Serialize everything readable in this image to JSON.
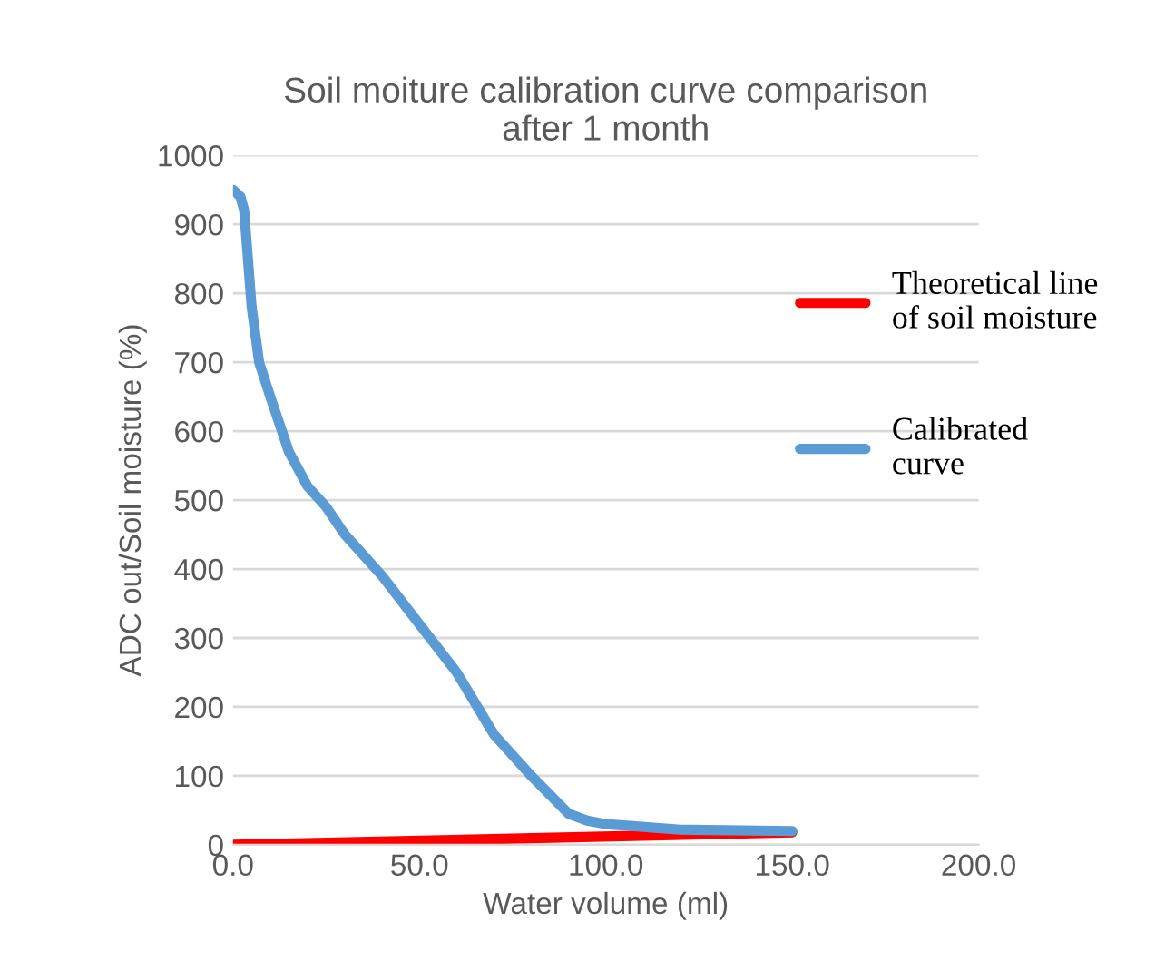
{
  "chart_data": {
    "type": "line",
    "title": "Soil moiture calibration curve comparison\nafter 1 month",
    "xlabel": "Water volume (ml)",
    "ylabel": "ADC out/Soil moisture (%)",
    "xlim": [
      0,
      200
    ],
    "xticks": [
      {
        "value": 0,
        "label": "0.0"
      },
      {
        "value": 50,
        "label": "50.0"
      },
      {
        "value": 100,
        "label": "100.0"
      },
      {
        "value": 150,
        "label": "150.0"
      },
      {
        "value": 200,
        "label": "200.0"
      }
    ],
    "ylim": [
      0,
      1000
    ],
    "yticks": [
      0,
      100,
      200,
      300,
      400,
      500,
      600,
      700,
      800,
      900,
      1000
    ],
    "grid": "y",
    "legend": "right",
    "series": [
      {
        "name": "Theoretical line\nof soil moisture",
        "color": "#ff0000",
        "x": [
          0,
          150
        ],
        "values": [
          0,
          18
        ]
      },
      {
        "name": "Calibrated\ncurve",
        "color": "#5b9bd5",
        "x": [
          0,
          2,
          3,
          5,
          7,
          10,
          15,
          20,
          25,
          30,
          35,
          40,
          50,
          60,
          70,
          80,
          90,
          95,
          100,
          120,
          150
        ],
        "values": [
          950,
          940,
          920,
          780,
          700,
          650,
          570,
          520,
          490,
          450,
          420,
          390,
          320,
          250,
          160,
          100,
          45,
          35,
          30,
          22,
          20
        ]
      }
    ]
  }
}
